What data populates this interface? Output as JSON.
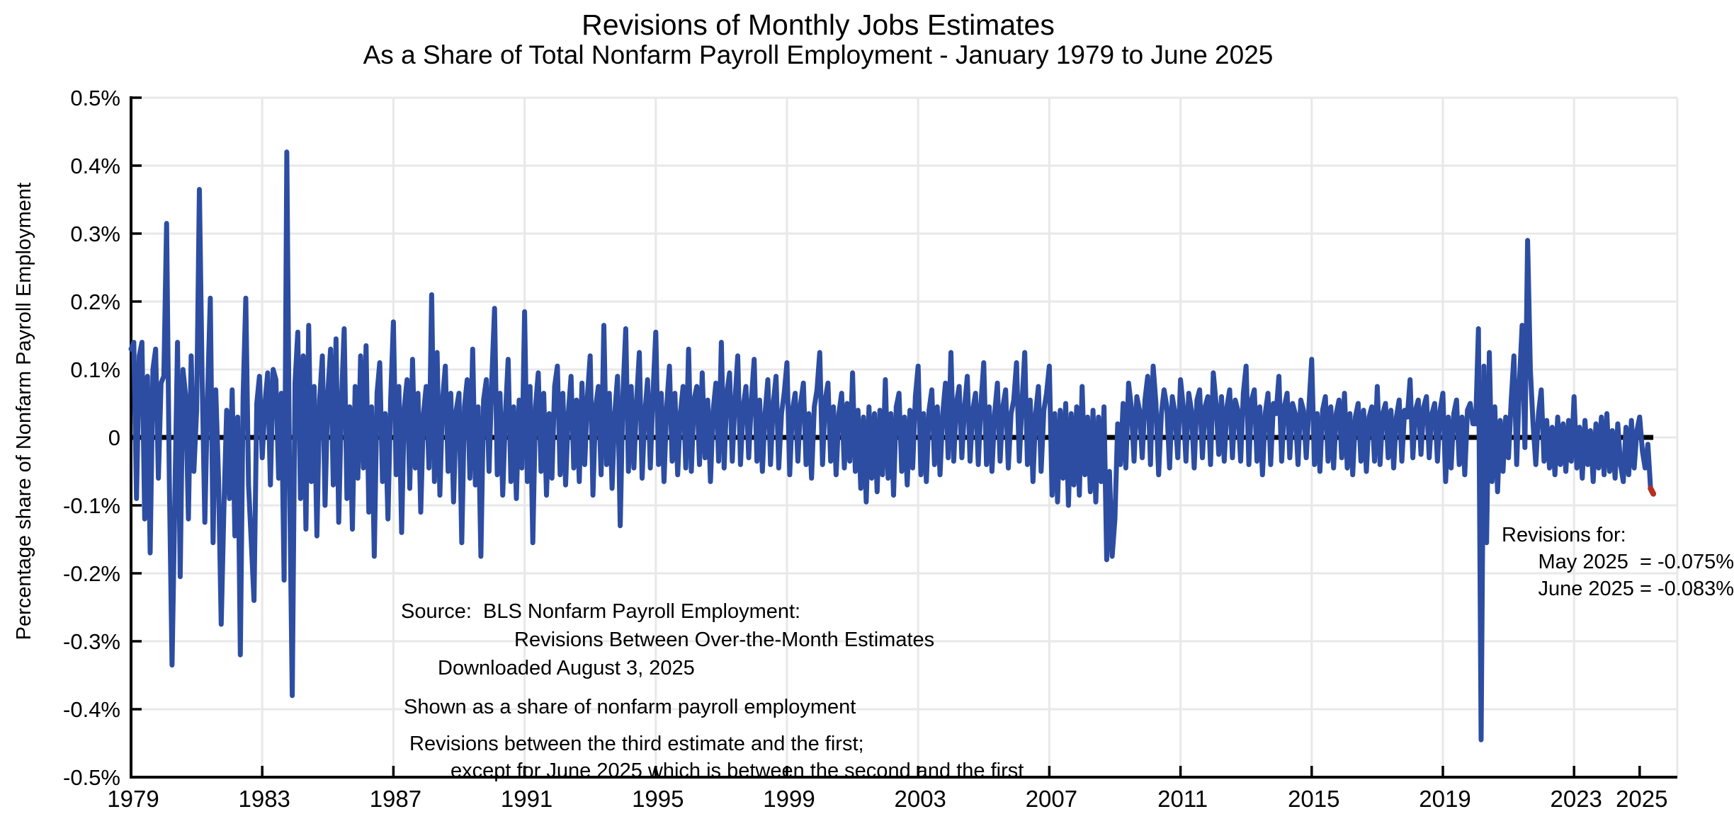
{
  "title": "Revisions of Monthly Jobs Estimates",
  "subtitle": "As a Share of Total Nonfarm Payroll Employment - January 1979 to June 2025",
  "y_axis": {
    "label": "Percentage share of Nonfarm Payroll Employment",
    "tick_labels": [
      "0.5%",
      "0.4%",
      "0.3%",
      "0.2%",
      "0.1%",
      "0",
      "-0.1%",
      "-0.2%",
      "-0.3%",
      "-0.4%",
      "-0.5%"
    ],
    "tick_values": [
      0.5,
      0.4,
      0.3,
      0.2,
      0.1,
      0,
      -0.1,
      -0.2,
      -0.3,
      -0.4,
      -0.5
    ]
  },
  "x_axis": {
    "tick_years": [
      1979,
      1983,
      1987,
      1991,
      1995,
      1999,
      2003,
      2007,
      2011,
      2015,
      2019,
      2023,
      2025
    ],
    "gridline_years": [
      1983,
      1987,
      1991,
      1995,
      1999,
      2003,
      2007,
      2011,
      2015,
      2019,
      2023
    ]
  },
  "annotations": {
    "source": [
      "Source:  BLS Nonfarm Payroll Employment:",
      "Revisions Between Over-the-Month Estimates",
      "Downloaded August 3, 2025",
      "Shown as a share of nonfarm payroll employment",
      "Revisions between the third estimate and the first;",
      "except for June 2025 which is between the second and the first"
    ],
    "revisions_for": {
      "heading": "Revisions for:",
      "may": "May 2025  = -0.075%",
      "june": "June 2025 = -0.083%"
    }
  },
  "colors": {
    "line_blue": "#2c4da1",
    "last_point_red": "#b3301f",
    "zero_line": "#000000",
    "grid": "#e8e8e8",
    "axis": "#000000"
  },
  "chart_data": {
    "type": "line",
    "title": "Revisions of Monthly Jobs Estimates",
    "unit": "percent of total nonfarm payroll employment",
    "frequency": "monthly",
    "start": "1979-01",
    "end": "2025-06",
    "xlim": [
      1979,
      2026.15
    ],
    "ylim": [
      -0.5,
      0.5
    ],
    "grid": true,
    "zero_line": true,
    "callouts": {
      "may_2025": -0.075,
      "june_2025": -0.083
    },
    "last_segment_color": "#b3301f",
    "series": [
      {
        "name": "Revision between third and first estimate (June 2025: second vs first)",
        "color": "#2c4da1",
        "data": [
          {
            "year": 1979,
            "values": [
              0.13,
              0.14,
              -0.09,
              0.12,
              0.14,
              -0.12,
              0.09,
              -0.17,
              0.1,
              0.13,
              -0.06,
              0.08
            ]
          },
          {
            "year": 1980,
            "values": [
              0.09,
              0.315,
              -0.06,
              -0.335,
              -0.1,
              0.14,
              -0.205,
              0.1,
              0.06,
              -0.12,
              0.12,
              -0.05
            ]
          },
          {
            "year": 1981,
            "values": [
              0.04,
              0.365,
              0.09,
              -0.125,
              0.06,
              0.205,
              -0.155,
              0.07,
              -0.06,
              -0.275,
              -0.1,
              0.04
            ]
          },
          {
            "year": 1982,
            "values": [
              -0.09,
              0.07,
              -0.145,
              0.03,
              -0.32,
              0.06,
              0.205,
              -0.07,
              -0.155,
              -0.24,
              0.05,
              0.09
            ]
          },
          {
            "year": 1983,
            "values": [
              -0.03,
              0.05,
              0.095,
              -0.07,
              0.1,
              0.085,
              -0.06,
              0.065,
              -0.21,
              0.42,
              -0.06,
              -0.38
            ]
          },
          {
            "year": 1984,
            "values": [
              0.08,
              0.155,
              -0.09,
              0.12,
              -0.135,
              0.165,
              -0.065,
              0.075,
              -0.145,
              0.055,
              0.12,
              -0.1
            ]
          },
          {
            "year": 1985,
            "values": [
              0.065,
              0.13,
              -0.07,
              0.145,
              -0.125,
              0.055,
              0.16,
              -0.09,
              0.045,
              -0.135,
              0.075,
              -0.06
            ]
          },
          {
            "year": 1986,
            "values": [
              0.12,
              -0.045,
              0.135,
              -0.11,
              0.045,
              -0.175,
              0.065,
              0.11,
              -0.065,
              0.035,
              -0.12,
              0.055
            ]
          },
          {
            "year": 1987,
            "values": [
              0.17,
              -0.055,
              0.075,
              -0.14,
              0.045,
              0.085,
              -0.075,
              0.115,
              -0.045,
              0.065,
              -0.11,
              0.035
            ]
          },
          {
            "year": 1988,
            "values": [
              0.075,
              -0.045,
              0.21,
              -0.065,
              0.125,
              -0.085,
              0.055,
              0.105,
              -0.05,
              0.065,
              -0.095,
              0.04
            ]
          },
          {
            "year": 1989,
            "values": [
              0.065,
              -0.155,
              0.045,
              0.085,
              -0.06,
              0.13,
              -0.07,
              0.045,
              -0.175,
              0.055,
              0.085,
              -0.05
            ]
          },
          {
            "year": 1990,
            "values": [
              0.085,
              0.19,
              -0.055,
              0.065,
              -0.085,
              0.035,
              0.115,
              -0.065,
              0.045,
              -0.09,
              0.055,
              -0.045
            ]
          },
          {
            "year": 1991,
            "values": [
              0.185,
              -0.065,
              0.075,
              -0.155,
              0.045,
              0.095,
              -0.05,
              0.065,
              -0.085,
              0.035,
              -0.06,
              0.075
            ]
          },
          {
            "year": 1992,
            "values": [
              0.105,
              -0.055,
              0.065,
              -0.07,
              0.035,
              0.09,
              -0.045,
              0.055,
              -0.065,
              0.08,
              -0.04,
              0.06
            ]
          },
          {
            "year": 1993,
            "values": [
              0.12,
              -0.085,
              0.045,
              0.075,
              -0.055,
              0.165,
              -0.04,
              0.065,
              -0.075,
              0.035,
              0.09,
              -0.13
            ]
          },
          {
            "year": 1994,
            "values": [
              0.065,
              0.16,
              -0.05,
              0.075,
              -0.045,
              0.055,
              0.125,
              -0.06,
              0.035,
              0.085,
              -0.045,
              0.065
            ]
          },
          {
            "year": 1995,
            "values": [
              0.155,
              -0.04,
              0.065,
              -0.065,
              0.045,
              0.105,
              -0.035,
              0.065,
              -0.055,
              0.035,
              0.075,
              -0.045
            ]
          },
          {
            "year": 1996,
            "values": [
              0.13,
              -0.05,
              0.055,
              0.075,
              -0.04,
              0.095,
              -0.03,
              0.055,
              -0.065,
              0.04,
              0.08,
              -0.035
            ]
          },
          {
            "year": 1997,
            "values": [
              0.14,
              -0.045,
              0.065,
              0.095,
              -0.035,
              0.055,
              0.12,
              -0.04,
              0.045,
              0.075,
              -0.03,
              0.055
            ]
          },
          {
            "year": 1998,
            "values": [
              0.115,
              -0.035,
              0.055,
              -0.05,
              0.035,
              0.085,
              -0.04,
              0.05,
              0.09,
              -0.045,
              0.035,
              0.065
            ]
          },
          {
            "year": 1999,
            "values": [
              0.11,
              -0.055,
              0.04,
              0.065,
              -0.035,
              0.05,
              0.08,
              -0.04,
              0.035,
              -0.06,
              0.045,
              0.07
            ]
          },
          {
            "year": 2000,
            "values": [
              0.125,
              -0.04,
              0.055,
              0.08,
              -0.035,
              0.045,
              -0.055,
              0.035,
              0.065,
              -0.045,
              0.05,
              -0.035
            ]
          },
          {
            "year": 2001,
            "values": [
              0.095,
              -0.05,
              0.04,
              -0.075,
              0.03,
              -0.095,
              0.045,
              -0.06,
              0.035,
              -0.08,
              0.04,
              -0.055
            ]
          },
          {
            "year": 2002,
            "values": [
              0.085,
              -0.06,
              0.035,
              -0.085,
              0.045,
              0.065,
              -0.05,
              0.03,
              -0.07,
              0.04,
              -0.045,
              0.06
            ]
          },
          {
            "year": 2003,
            "values": [
              0.105,
              -0.055,
              0.035,
              -0.065,
              0.04,
              0.07,
              -0.04,
              0.045,
              -0.055,
              0.035,
              0.08,
              -0.03
            ]
          },
          {
            "year": 2004,
            "values": [
              0.125,
              -0.035,
              0.05,
              0.075,
              -0.03,
              0.045,
              0.09,
              -0.035,
              0.04,
              0.065,
              -0.04,
              0.05
            ]
          },
          {
            "year": 2005,
            "values": [
              0.11,
              -0.04,
              0.045,
              -0.05,
              0.035,
              0.08,
              -0.035,
              0.045,
              0.07,
              -0.045,
              0.035,
              0.055
            ]
          },
          {
            "year": 2006,
            "values": [
              0.11,
              -0.035,
              0.05,
              0.125,
              -0.04,
              0.055,
              -0.065,
              0.035,
              0.075,
              -0.05,
              0.04,
              0.065
            ]
          },
          {
            "year": 2007,
            "values": [
              0.105,
              -0.085,
              0.035,
              -0.095,
              0.04,
              -0.06,
              0.05,
              -0.1,
              0.035,
              -0.07,
              0.045,
              -0.085
            ]
          },
          {
            "year": 2008,
            "values": [
              0.075,
              -0.055,
              0.03,
              -0.08,
              0.04,
              -0.095,
              0.03,
              -0.065,
              0.045,
              -0.18,
              -0.05,
              -0.175
            ]
          },
          {
            "year": 2009,
            "values": [
              -0.12,
              0.02,
              -0.04,
              0.05,
              -0.045,
              0.08,
              0.045,
              -0.035,
              0.06,
              0.04,
              -0.03,
              0.055
            ]
          },
          {
            "year": 2010,
            "values": [
              0.09,
              -0.04,
              0.105,
              0.05,
              -0.055,
              0.035,
              0.07,
              0.045,
              -0.045,
              0.06,
              0.035,
              -0.03
            ]
          },
          {
            "year": 2011,
            "values": [
              0.085,
              0.045,
              -0.035,
              0.065,
              0.04,
              -0.045,
              0.055,
              0.07,
              -0.03,
              0.045,
              0.06,
              -0.04
            ]
          },
          {
            "year": 2012,
            "values": [
              0.095,
              0.05,
              -0.025,
              0.06,
              -0.035,
              0.045,
              0.07,
              -0.03,
              0.055,
              0.04,
              -0.035,
              0.065
            ]
          },
          {
            "year": 2013,
            "values": [
              0.105,
              -0.04,
              0.055,
              0.07,
              -0.035,
              0.045,
              -0.055,
              0.035,
              0.065,
              -0.04,
              0.05,
              0.035
            ]
          },
          {
            "year": 2014,
            "values": [
              0.09,
              -0.035,
              0.045,
              0.065,
              -0.03,
              0.05,
              0.035,
              -0.04,
              0.055,
              0.04,
              -0.03,
              0.045
            ]
          },
          {
            "year": 2015,
            "values": [
              0.115,
              -0.04,
              0.035,
              -0.05,
              0.04,
              0.06,
              -0.035,
              0.045,
              -0.045,
              0.035,
              0.055,
              -0.03
            ]
          },
          {
            "year": 2016,
            "values": [
              0.065,
              -0.045,
              0.035,
              -0.055,
              0.03,
              0.05,
              -0.035,
              0.04,
              -0.05,
              0.03,
              0.045,
              -0.035
            ]
          },
          {
            "year": 2017,
            "values": [
              0.075,
              -0.04,
              0.035,
              0.05,
              -0.03,
              0.04,
              -0.045,
              0.03,
              0.055,
              -0.035,
              0.04,
              0.03
            ]
          },
          {
            "year": 2018,
            "values": [
              0.085,
              -0.03,
              0.04,
              0.055,
              -0.025,
              0.045,
              0.06,
              -0.03,
              0.035,
              0.05,
              -0.035,
              0.04
            ]
          },
          {
            "year": 2019,
            "values": [
              0.065,
              -0.065,
              0.03,
              -0.045,
              0.035,
              0.055,
              -0.04,
              0.03,
              -0.055,
              0.04,
              0.05,
              0.02
            ]
          },
          {
            "year": 2020,
            "values": [
              0.02,
              0.16,
              -0.445,
              0.105,
              -0.155,
              0.125,
              -0.065,
              0.045,
              -0.08,
              0.025,
              -0.05,
              0.03
            ]
          },
          {
            "year": 2021,
            "values": [
              -0.03,
              0.055,
              0.12,
              -0.04,
              0.08,
              0.165,
              -0.015,
              0.29,
              0.1,
              0.02,
              -0.04,
              0.035
            ]
          },
          {
            "year": 2022,
            "values": [
              0.07,
              -0.035,
              0.025,
              -0.045,
              0.015,
              -0.055,
              0.03,
              -0.04,
              0.02,
              -0.05,
              0.025,
              -0.035
            ]
          },
          {
            "year": 2023,
            "values": [
              0.06,
              -0.045,
              0.015,
              -0.06,
              0.025,
              -0.04,
              0.01,
              -0.065,
              0.02,
              -0.045,
              0.03,
              -0.055
            ]
          },
          {
            "year": 2024,
            "values": [
              0.035,
              -0.05,
              0.01,
              -0.06,
              0.02,
              -0.04,
              -0.065,
              0.015,
              -0.055,
              0.025,
              -0.045,
              0.01
            ]
          },
          {
            "year": 2025,
            "values": [
              0.03,
              -0.02,
              -0.045,
              -0.01,
              -0.075,
              -0.083
            ]
          }
        ]
      }
    ]
  }
}
